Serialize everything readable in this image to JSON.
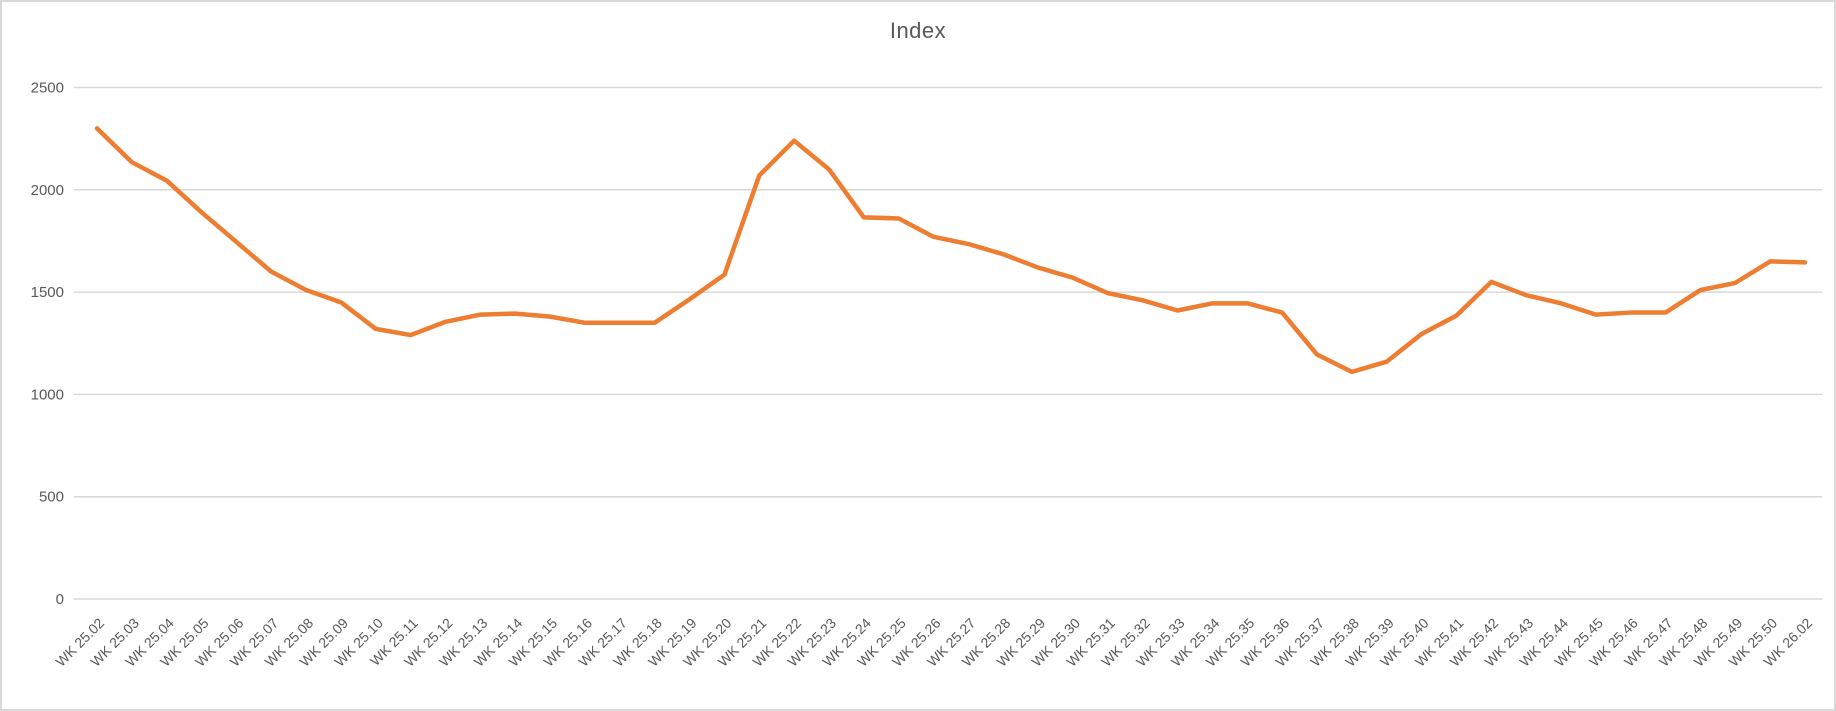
{
  "chart_data": {
    "type": "line",
    "title": "Index",
    "categories": [
      "WK 25.02",
      "WK 25.03",
      "WK 25.04",
      "WK 25.05",
      "WK 25.06",
      "WK 25.07",
      "WK 25.08",
      "WK 25.09",
      "WK 25.10",
      "WK 25.11",
      "WK 25.12",
      "WK 25.13",
      "WK 25.14",
      "WK 25.15",
      "WK 25.16",
      "WK 25.17",
      "WK 25.18",
      "WK 25.19",
      "WK 25.20",
      "WK 25.21",
      "WK 25.22",
      "WK 25.23",
      "WK 25.24",
      "WK 25.25",
      "WK 25.26",
      "WK 25.27",
      "WK 25.28",
      "WK 25.29",
      "WK 25.30",
      "WK 25.31",
      "WK 25.32",
      "WK 25.33",
      "WK 25.34",
      "WK 25.35",
      "WK 25.36",
      "WK 25.37",
      "WK 25.38",
      "WK 25.39",
      "WK 25.40",
      "WK 25.41",
      "WK 25.42",
      "WK 25.43",
      "WK 25.44",
      "WK 25.45",
      "WK 25.46",
      "WK 25.47",
      "WK 25.48",
      "WK 25.49",
      "WK 25.50",
      "WK 26.02"
    ],
    "values": [
      2300,
      2135,
      2045,
      1890,
      1745,
      1600,
      1510,
      1450,
      1320,
      1290,
      1355,
      1390,
      1395,
      1380,
      1350,
      1350,
      1350,
      1465,
      1585,
      2070,
      2240,
      2100,
      1865,
      1860,
      1770,
      1735,
      1685,
      1620,
      1570,
      1495,
      1460,
      1410,
      1445,
      1445,
      1400,
      1195,
      1110,
      1160,
      1295,
      1385,
      1550,
      1485,
      1445,
      1390,
      1400,
      1400,
      1510,
      1545,
      1650,
      1645
    ],
    "xlabel": "",
    "ylabel": "",
    "ylim": [
      0,
      2500
    ],
    "yticks": [
      0,
      500,
      1000,
      1500,
      2000,
      2500
    ],
    "grid": "horizontal",
    "legend": "none",
    "x_label_rotation_deg": -45
  },
  "colors": {
    "line": "#ED7D31",
    "gridline": "#D9D9D9",
    "axis_text": "#595959",
    "title_text": "#595959",
    "border": "#D9D9D9",
    "background": "#FFFFFF"
  }
}
